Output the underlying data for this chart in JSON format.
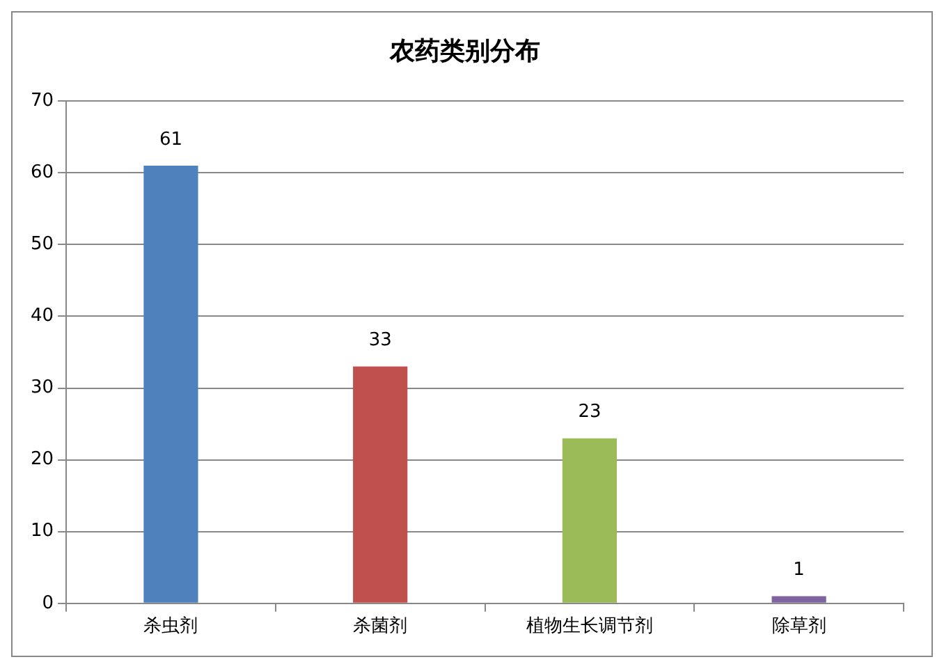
{
  "chart_data": {
    "type": "bar",
    "title": "农药类别分布",
    "categories": [
      "杀虫剂",
      "杀菌剂",
      "植物生长调节剂",
      "除草剂"
    ],
    "values": [
      61,
      33,
      23,
      1
    ],
    "colors": [
      "#4f81bd",
      "#c0504d",
      "#9bbb59",
      "#8064a2"
    ],
    "ylim": [
      0,
      70
    ],
    "yticks": [
      0,
      10,
      20,
      30,
      40,
      50,
      60,
      70
    ],
    "grid": "y",
    "data_labels": true,
    "legend": false
  }
}
